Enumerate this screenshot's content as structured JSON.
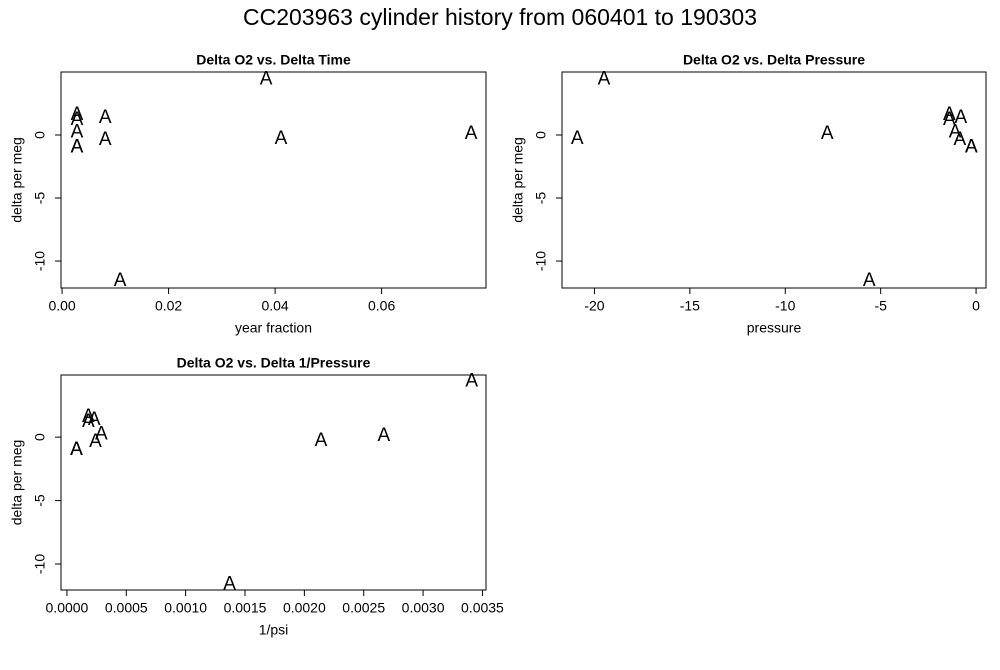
{
  "title": "CC203963   cylinder history from  060401  to  190303",
  "chart_data": [
    {
      "type": "scatter",
      "title": "Delta O2 vs. Delta Time",
      "x_label": "year fraction",
      "y_label": "delta per meg",
      "marker": "A",
      "color": "#006400",
      "x": [
        0.0028,
        0.0028,
        0.0081,
        0.0028,
        0.0028,
        0.0768,
        0.0411,
        0.0081,
        0.0028,
        0.0109,
        0.0383
      ],
      "y": [
        1.6,
        1.2,
        1.35,
        0.2,
        -1.0,
        0.1,
        -0.3,
        -0.4,
        -1.0,
        -11.6,
        4.4
      ],
      "xlim": [
        -0.0002,
        0.0796
      ],
      "ylim": [
        -12.14,
        5.0
      ],
      "xticks": [
        {
          "value": 0,
          "label": "0.00"
        },
        0.02,
        0.04,
        0.06
      ],
      "yticks": [
        -10,
        -5,
        0
      ]
    },
    {
      "type": "scatter",
      "title": "Delta O2 vs. Delta Pressure",
      "x_label": "pressure",
      "y_label": "delta per meg",
      "marker": "A",
      "color": "#006400",
      "x": [
        -1.4,
        -1.4,
        -0.8,
        -1.1,
        -0.25,
        -7.8,
        -20.9,
        -0.85,
        -0.25,
        -5.6,
        -19.5
      ],
      "y": [
        1.6,
        1.2,
        1.35,
        0.2,
        -1.0,
        0.1,
        -0.3,
        -0.4,
        -1.0,
        -11.6,
        4.4
      ],
      "xlim": [
        -21.7,
        0.52
      ],
      "ylim": [
        -12.14,
        5.0
      ],
      "xticks": [
        -20,
        -15,
        -10,
        -5,
        0
      ],
      "yticks": [
        -10,
        -5,
        0
      ]
    },
    {
      "type": "scatter",
      "title": "Delta O2 vs. Delta 1/Pressure",
      "x_label": "1/psi",
      "y_label": "delta per meg",
      "marker": "A",
      "color": "#006400",
      "x": [
        0.00018,
        0.00018,
        0.00023,
        0.00029,
        8e-05,
        0.00267,
        0.00214,
        0.00024,
        8e-05,
        0.00137,
        0.00341
      ],
      "y": [
        1.6,
        1.2,
        1.35,
        0.2,
        -1.0,
        0.1,
        -0.3,
        -0.4,
        -1.0,
        -11.6,
        4.4
      ],
      "xlim": [
        -5e-05,
        0.00353
      ],
      "ylim": [
        -12.05,
        4.9
      ],
      "xticks": [
        {
          "value": 0,
          "label": "0.0000"
        },
        0.0005,
        {
          "value": 0.001,
          "label": "0.0010"
        },
        0.0015,
        {
          "value": 0.002,
          "label": "0.0020"
        },
        0.0025,
        {
          "value": 0.003,
          "label": "0.0030"
        },
        0.0035
      ],
      "yticks": [
        -10,
        -5,
        0
      ]
    }
  ]
}
